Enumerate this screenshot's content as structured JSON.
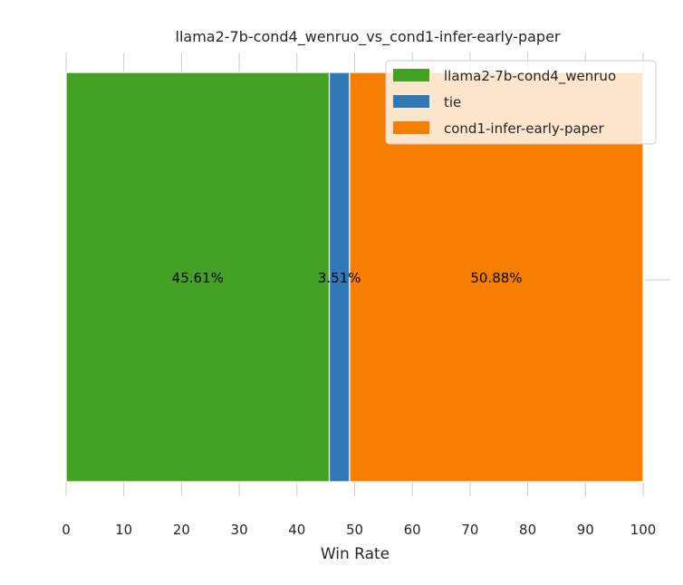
{
  "chart_data": {
    "type": "bar",
    "orientation": "horizontal",
    "stacked": true,
    "title": "llama2-7b-cond4_wenruo_vs_cond1-infer-early-paper",
    "xlabel": "Win Rate",
    "ylabel": "",
    "xlim": [
      0,
      100
    ],
    "xticks": [
      "0",
      "10",
      "20",
      "30",
      "40",
      "50",
      "60",
      "70",
      "80",
      "90",
      "100"
    ],
    "grid": true,
    "legend_position": "top-right",
    "series": [
      {
        "name": "llama2-7b-cond4_wenruo",
        "value": 45.61,
        "label": "45.61%",
        "color": "#43a124"
      },
      {
        "name": "tie",
        "value": 3.51,
        "label": "3.51%",
        "color": "#3178b8"
      },
      {
        "name": "cond1-infer-early-paper",
        "value": 50.88,
        "label": "50.88%",
        "color": "#f57d00"
      }
    ]
  }
}
